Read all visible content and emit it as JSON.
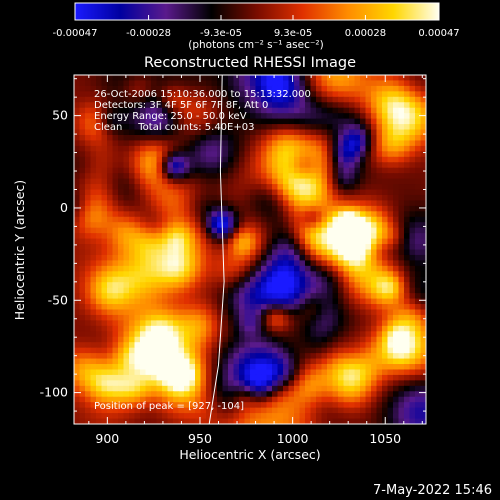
{
  "colorbar": {
    "tick_labels": [
      "-0.00047",
      "-0.00028",
      "-9.3e-05",
      "9.3e-05",
      "0.00028",
      "0.00047"
    ],
    "tick_values": [
      -0.00047,
      -0.00028,
      -9.3e-05,
      9.3e-05,
      0.00028,
      0.00047
    ],
    "unit_label": "(photons cm⁻² s⁻¹ asec⁻²)",
    "range": [
      -0.00047,
      0.00047
    ],
    "colors": [
      "#1a1aff",
      "#0000a0",
      "#5a1a8c",
      "#000000",
      "#7a0c00",
      "#e03000",
      "#ff8c00",
      "#ffd600",
      "#fffff0"
    ]
  },
  "chart_data": {
    "type": "heatmap",
    "title": "Reconstructed RHESSI Image",
    "xlabel": "Heliocentric X (arcsec)",
    "ylabel": "Heliocentric Y (arcsec)",
    "xlim": [
      882,
      1072
    ],
    "ylim": [
      -117,
      72
    ],
    "xticks": [
      900,
      950,
      1000,
      1050
    ],
    "yticks": [
      -100,
      -50,
      0,
      50
    ],
    "annotations": [
      "26-Oct-2006 15:10:36.000 to 15:13:32.000",
      "Detectors: 3F 4F 5F 6F 7F 8F, Att 0",
      "Energy Range: 25.0 - 50.0 keV",
      "Clean     Total counts: 5.40E+03"
    ],
    "peak_text": "Position of peak = [927, -104]",
    "peak_position": [
      927,
      -104
    ],
    "limb_line": [
      [
        962,
        72
      ],
      [
        961,
        20
      ],
      [
        963,
        -40
      ],
      [
        960,
        -85
      ],
      [
        955,
        -117
      ]
    ]
  },
  "footer": {
    "timestamp": "7-May-2022 15:46"
  }
}
